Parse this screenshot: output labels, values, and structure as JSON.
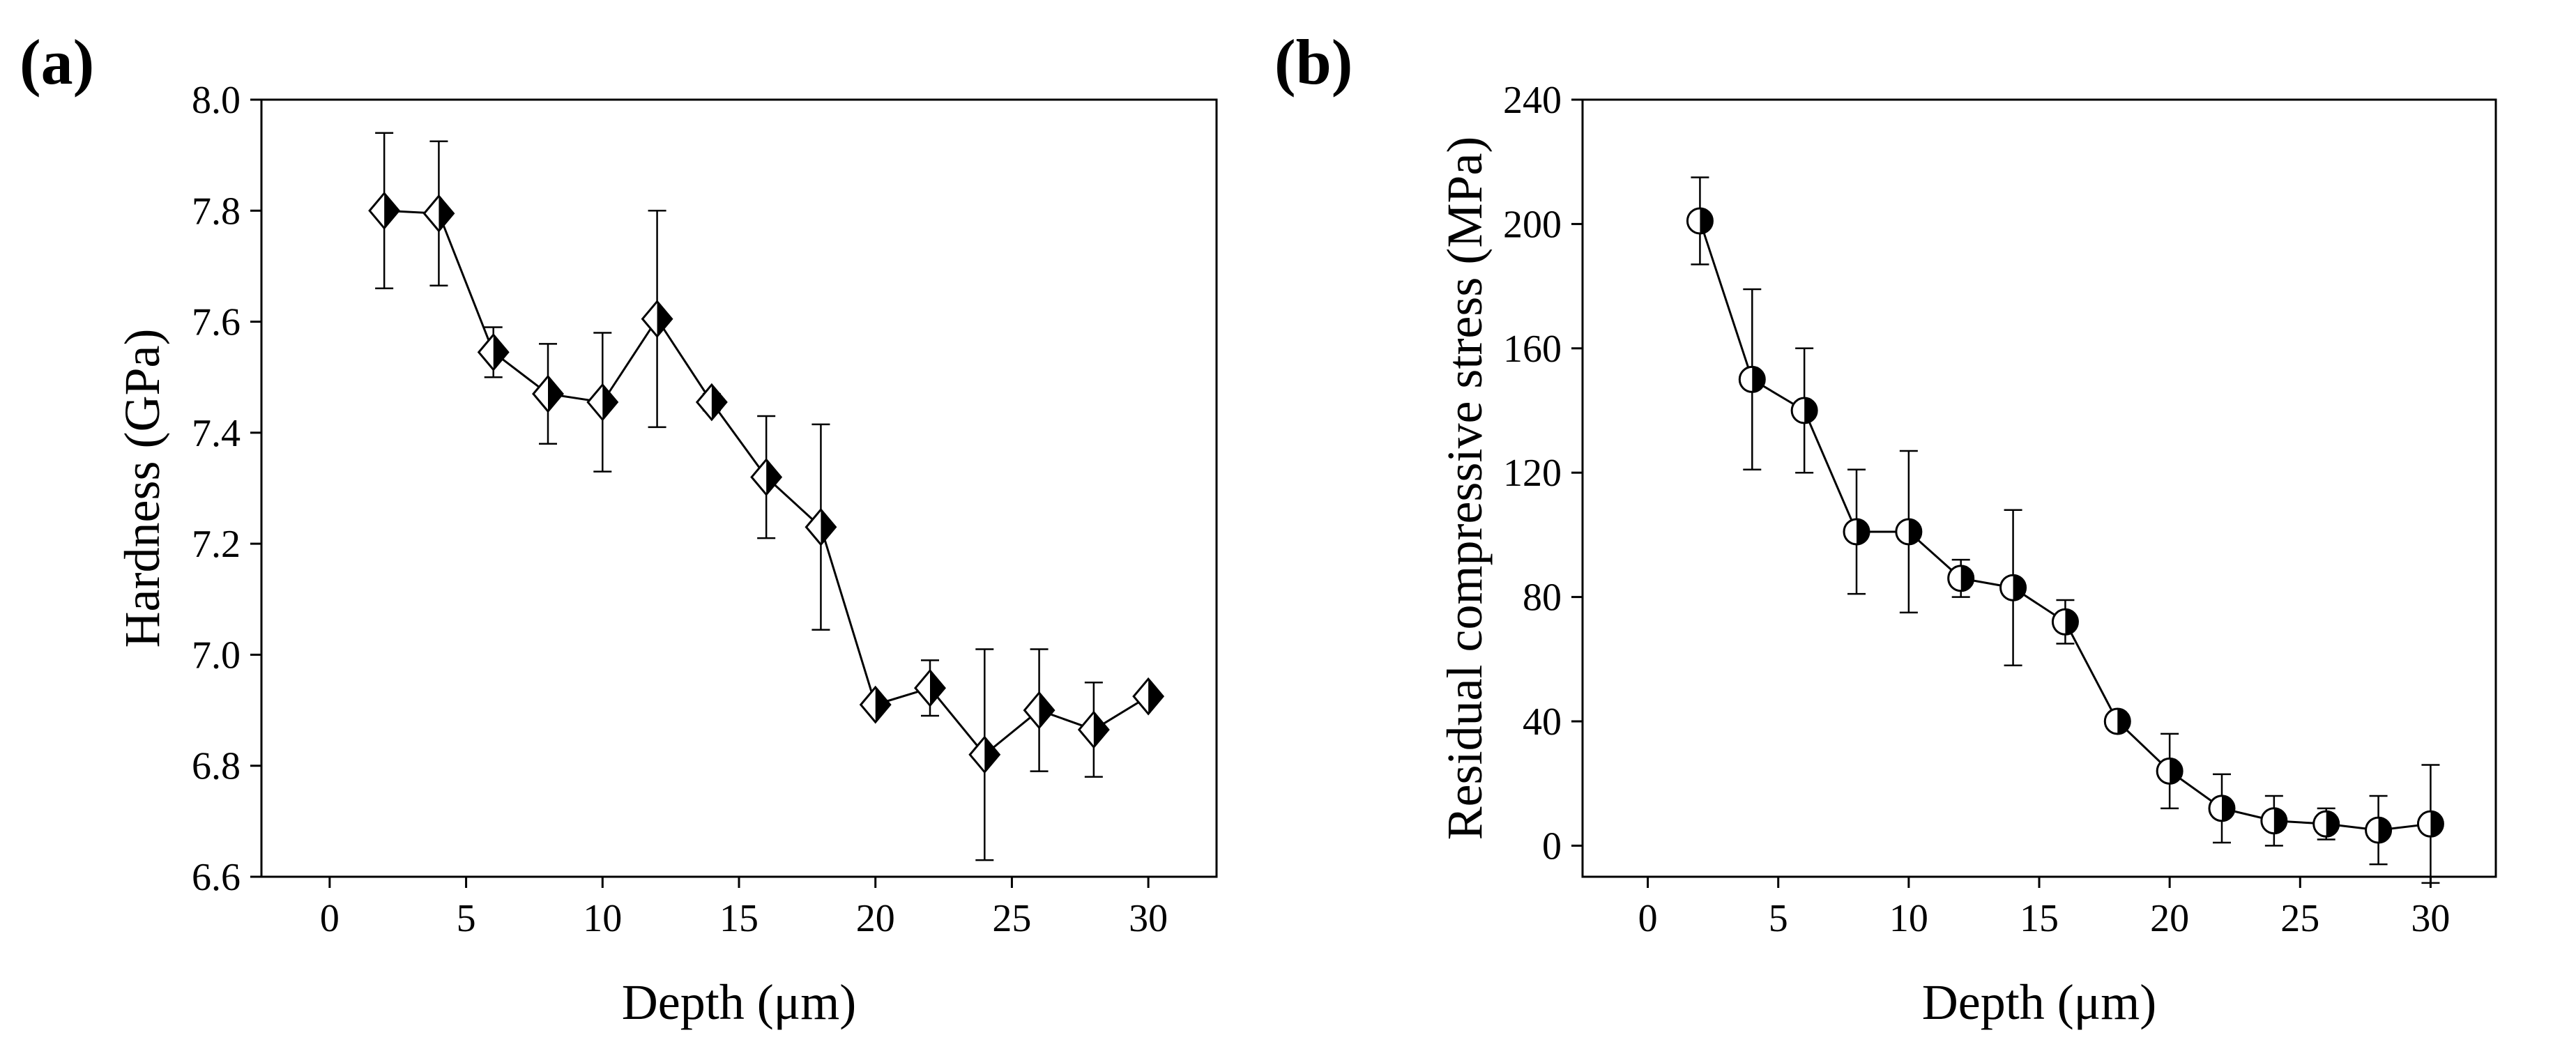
{
  "chart_data": [
    {
      "panel": "(a)",
      "type": "line",
      "title": "",
      "xlabel": "Depth (μm)",
      "ylabel": "Hardness (GPa)",
      "xlim": [
        -2.5,
        32.5
      ],
      "ylim": [
        6.6,
        8.0
      ],
      "xticks": [
        0,
        5,
        10,
        15,
        20,
        25,
        30
      ],
      "yticks": [
        6.6,
        6.8,
        7.0,
        7.2,
        7.4,
        7.6,
        7.8,
        8.0
      ],
      "xtick_labels": [
        "0",
        "5",
        "10",
        "15",
        "20",
        "25",
        "30"
      ],
      "ytick_labels": [
        "6.6",
        "6.8",
        "7.0",
        "7.2",
        "7.4",
        "7.6",
        "7.8",
        "8.0"
      ],
      "marker": "half-filled-diamond",
      "grid": false,
      "series": [
        {
          "name": "Hardness",
          "x": [
            2,
            4,
            6,
            8,
            10,
            12,
            14,
            16,
            18,
            20,
            22,
            24,
            26,
            28,
            30
          ],
          "y": [
            7.8,
            7.795,
            7.545,
            7.47,
            7.455,
            7.605,
            7.455,
            7.32,
            7.23,
            6.91,
            6.94,
            6.82,
            6.9,
            6.865,
            6.925
          ],
          "yerr": [
            0.14,
            0.13,
            0.045,
            0.09,
            0.125,
            0.195,
            0.015,
            0.11,
            0.185,
            0.01,
            0.05,
            0.19,
            0.11,
            0.085,
            0.01
          ]
        }
      ]
    },
    {
      "panel": "(b)",
      "type": "line",
      "title": "",
      "xlabel": "Depth (μm)",
      "ylabel": "Residual compressive stress (MPa)",
      "xlim": [
        -2.5,
        32.5
      ],
      "ylim": [
        -10,
        240
      ],
      "xticks": [
        0,
        5,
        10,
        15,
        20,
        25,
        30
      ],
      "yticks": [
        0,
        40,
        80,
        120,
        160,
        200,
        240
      ],
      "xtick_labels": [
        "0",
        "5",
        "10",
        "15",
        "20",
        "25",
        "30"
      ],
      "ytick_labels": [
        "0",
        "40",
        "80",
        "120",
        "160",
        "200",
        "240"
      ],
      "marker": "half-filled-circle",
      "grid": false,
      "series": [
        {
          "name": "Residual compressive stress",
          "x": [
            2,
            4,
            6,
            8,
            10,
            12,
            14,
            16,
            18,
            20,
            22,
            24,
            26,
            28,
            30
          ],
          "y": [
            201,
            150,
            140,
            101,
            101,
            86,
            83,
            72,
            40,
            24,
            12,
            8,
            7,
            5,
            7
          ],
          "yerr": [
            14,
            29,
            20,
            20,
            26,
            6,
            25,
            7,
            3,
            12,
            11,
            8,
            5,
            11,
            19
          ]
        }
      ]
    }
  ]
}
